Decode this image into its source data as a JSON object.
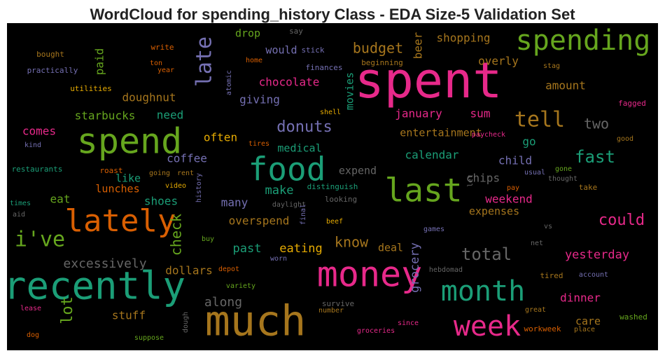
{
  "chart_data": {
    "type": "wordcloud",
    "title": "WordCloud for spending_history Class - EDA Size-5 Validation Set",
    "background": "#000000",
    "words": [
      "spent",
      "spending",
      "spend",
      "food",
      "last",
      "lately",
      "i've",
      "recently",
      "money",
      "much",
      "month",
      "week",
      "late",
      "budget",
      "beer",
      "shopping",
      "paid",
      "drop",
      "would",
      "say",
      "stick",
      "overly",
      "chocolate",
      "doughnut",
      "giving",
      "movies",
      "amount",
      "starbucks",
      "need",
      "january",
      "sum",
      "tell",
      "two",
      "comes",
      "donuts",
      "often",
      "entertainment",
      "coffee",
      "medical",
      "calendar",
      "go",
      "fast",
      "child",
      "expend",
      "chips",
      "like",
      "lunches",
      "make",
      "eat",
      "many",
      "shoes",
      "weekend",
      "check",
      "expenses",
      "overspend",
      "could",
      "know",
      "past",
      "eating",
      "grocery",
      "total",
      "deal",
      "yesterday",
      "excessively",
      "dollars",
      "lot",
      "along",
      "stuff",
      "dinner",
      "care",
      "bought",
      "write",
      "ton",
      "practically",
      "year",
      "utilities",
      "home",
      "atomic",
      "finances",
      "beginning",
      "stag",
      "shell",
      "paycheck",
      "tires",
      "fagged",
      "good",
      "kind",
      "restaurants",
      "roast",
      "going",
      "rent",
      "usual",
      "gone",
      "thought",
      "take",
      "distinguish",
      "video",
      "history",
      "let",
      "pay",
      "times",
      "daylight",
      "looking",
      "final",
      "aid",
      "beef",
      "games",
      "vs",
      "buy",
      "net",
      "depot",
      "worn",
      "hebdomad",
      "account",
      "tired",
      "variety",
      "survive",
      "lease",
      "great",
      "number",
      "washed",
      "dough",
      "since",
      "groceries",
      "workweek",
      "place",
      "dog",
      "suppose"
    ],
    "colors": [
      "#e7298a",
      "#66a61e",
      "#66a61e",
      "#1b9e77",
      "#66a61e",
      "#d95f02",
      "#66a61e",
      "#1b9e77",
      "#e7298a",
      "#a6761d",
      "#1b9e77",
      "#e7298a",
      "#7570b3",
      "#a6761d",
      "#a6761d",
      "#a6761d",
      "#66a61e",
      "#66a61e",
      "#7570b3",
      "#666666",
      "#7570b3",
      "#a6761d",
      "#e7298a",
      "#a6761d",
      "#7570b3",
      "#1b9e77",
      "#a6761d",
      "#66a61e",
      "#1b9e77",
      "#e7298a",
      "#e7298a",
      "#a6761d",
      "#666666",
      "#e7298a",
      "#7570b3",
      "#e6ab02",
      "#a6761d",
      "#7570b3",
      "#1b9e77",
      "#1b9e77",
      "#1b9e77",
      "#1b9e77",
      "#7570b3",
      "#666666",
      "#666666",
      "#1b9e77",
      "#d95f02",
      "#1b9e77",
      "#66a61e",
      "#7570b3",
      "#1b9e77",
      "#e7298a",
      "#66a61e",
      "#a6761d",
      "#a6761d",
      "#e7298a",
      "#a6761d",
      "#1b9e77",
      "#e6ab02",
      "#7570b3",
      "#666666",
      "#a6761d",
      "#e7298a",
      "#666666",
      "#a6761d",
      "#66a61e",
      "#666666",
      "#a6761d",
      "#e7298a",
      "#a6761d",
      "#a6761d",
      "#d95f02",
      "#d95f02",
      "#7570b3",
      "#d95f02",
      "#e6ab02",
      "#d95f02",
      "#7570b3",
      "#7570b3",
      "#a6761d",
      "#a6761d",
      "#e6ab02",
      "#e7298a",
      "#d95f02",
      "#e7298a",
      "#a6761d",
      "#7570b3",
      "#1b9e77",
      "#d95f02",
      "#a6761d",
      "#a6761d",
      "#7570b3",
      "#66a61e",
      "#666666",
      "#a6761d",
      "#1b9e77",
      "#e6ab02",
      "#7570b3",
      "#666666",
      "#d95f02",
      "#1b9e77",
      "#666666",
      "#666666",
      "#7570b3",
      "#666666",
      "#e6ab02",
      "#7570b3",
      "#666666",
      "#66a61e",
      "#666666",
      "#d95f02",
      "#7570b3",
      "#666666",
      "#7570b3",
      "#a6761d",
      "#66a61e",
      "#666666",
      "#e7298a",
      "#a6761d",
      "#a6761d",
      "#66a61e",
      "#666666",
      "#e7298a",
      "#e7298a",
      "#d95f02",
      "#a6761d",
      "#d95f02",
      "#66a61e"
    ]
  }
}
